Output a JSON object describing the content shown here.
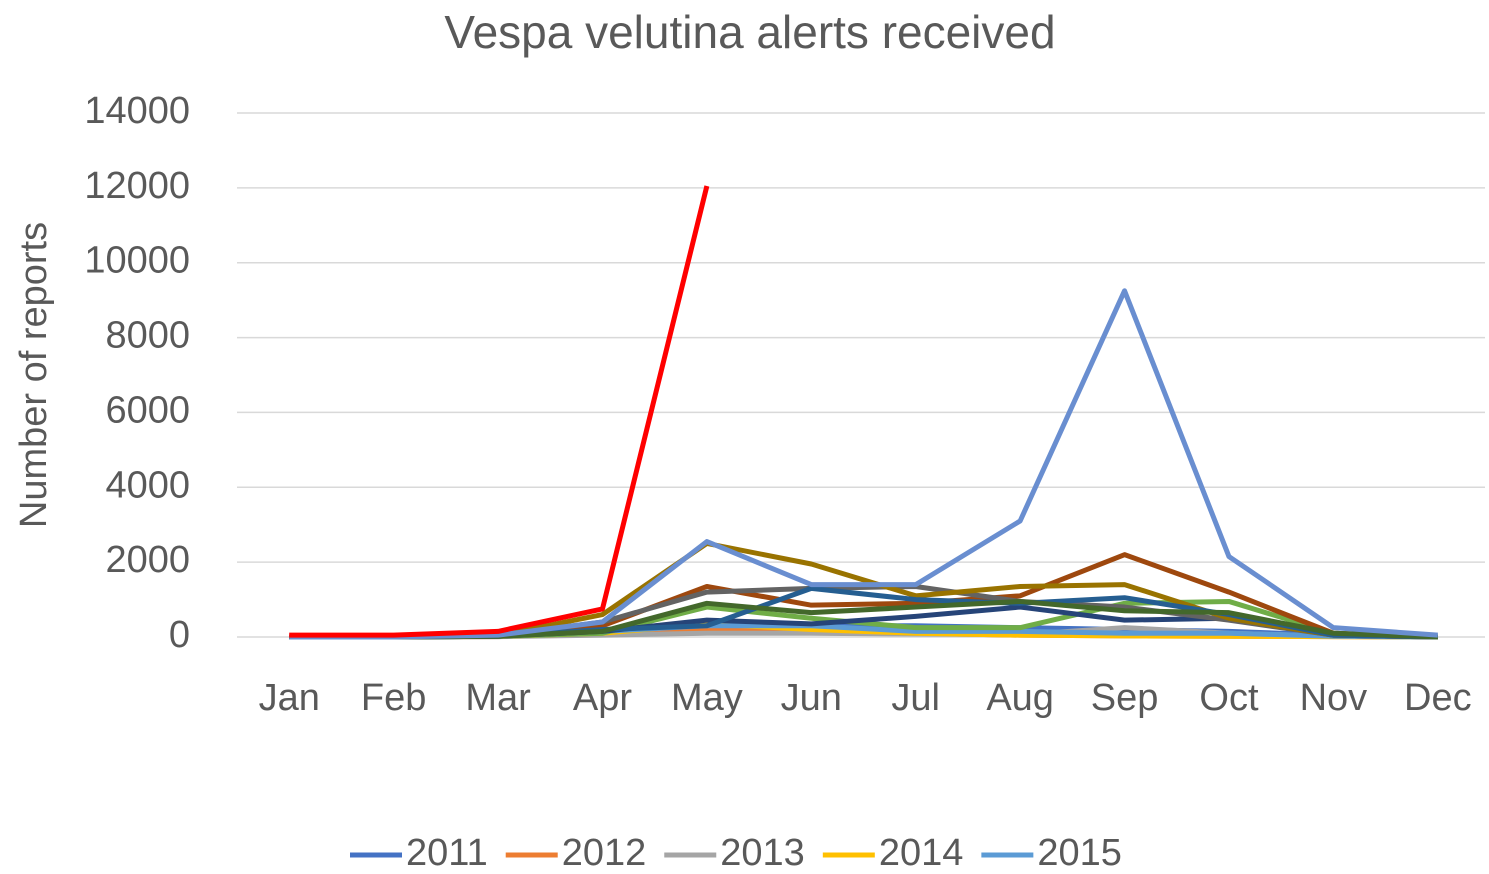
{
  "chart_data": {
    "type": "line",
    "title": "Vespa velutina alerts received",
    "y_label": "Number of reports",
    "categories": [
      "Jan",
      "Feb",
      "Mar",
      "Apr",
      "May",
      "Jun",
      "Jul",
      "Aug",
      "Sep",
      "Oct",
      "Nov",
      "Dec"
    ],
    "ylim": [
      0,
      14000
    ],
    "yticks": [
      0,
      2000,
      4000,
      6000,
      8000,
      10000,
      12000,
      14000
    ],
    "grid": true,
    "legend": "bottom",
    "series": [
      {
        "name": "2011",
        "color": "#4472C4",
        "values": [
          0,
          0,
          20,
          150,
          350,
          300,
          300,
          250,
          200,
          150,
          50,
          0
        ]
      },
      {
        "name": "2012",
        "color": "#ED7D31",
        "values": [
          0,
          0,
          10,
          100,
          200,
          150,
          100,
          50,
          30,
          20,
          10,
          0
        ]
      },
      {
        "name": "2013",
        "color": "#A5A5A5",
        "values": [
          0,
          0,
          10,
          50,
          100,
          100,
          80,
          60,
          250,
          100,
          20,
          0
        ]
      },
      {
        "name": "2014",
        "color": "#FFC000",
        "values": [
          0,
          0,
          20,
          100,
          350,
          200,
          100,
          50,
          30,
          20,
          10,
          0
        ]
      },
      {
        "name": "2015",
        "color": "#5B9BD5",
        "values": [
          0,
          0,
          20,
          150,
          300,
          300,
          150,
          150,
          100,
          100,
          20,
          0
        ]
      },
      {
        "color": "#70AD47",
        "values": [
          0,
          0,
          20,
          100,
          800,
          500,
          250,
          250,
          900,
          950,
          100,
          0
        ]
      },
      {
        "color": "#264478",
        "values": [
          0,
          0,
          20,
          150,
          450,
          350,
          550,
          800,
          450,
          500,
          50,
          0
        ]
      },
      {
        "color": "#9E480E",
        "values": [
          0,
          0,
          30,
          300,
          1350,
          850,
          900,
          1100,
          2200,
          1200,
          100,
          0
        ]
      },
      {
        "color": "#636363",
        "values": [
          0,
          0,
          30,
          400,
          1200,
          1300,
          1350,
          950,
          800,
          450,
          50,
          0
        ]
      },
      {
        "color": "#997300",
        "values": [
          0,
          0,
          40,
          600,
          2500,
          1950,
          1100,
          1350,
          1400,
          500,
          50,
          0
        ]
      },
      {
        "color": "#255E91",
        "values": [
          0,
          0,
          20,
          200,
          300,
          1300,
          1000,
          900,
          1050,
          600,
          50,
          0
        ]
      },
      {
        "color": "#43682B",
        "values": [
          0,
          0,
          20,
          150,
          900,
          650,
          800,
          950,
          700,
          650,
          100,
          0
        ]
      },
      {
        "color": "#698ED0",
        "values": [
          0,
          0,
          50,
          400,
          2550,
          1400,
          1400,
          3100,
          9250,
          2150,
          250,
          50
        ]
      },
      {
        "color": "#FF0000",
        "values": [
          50,
          50,
          150,
          750,
          12050,
          null,
          null,
          null,
          null,
          null,
          null,
          null
        ]
      }
    ]
  }
}
